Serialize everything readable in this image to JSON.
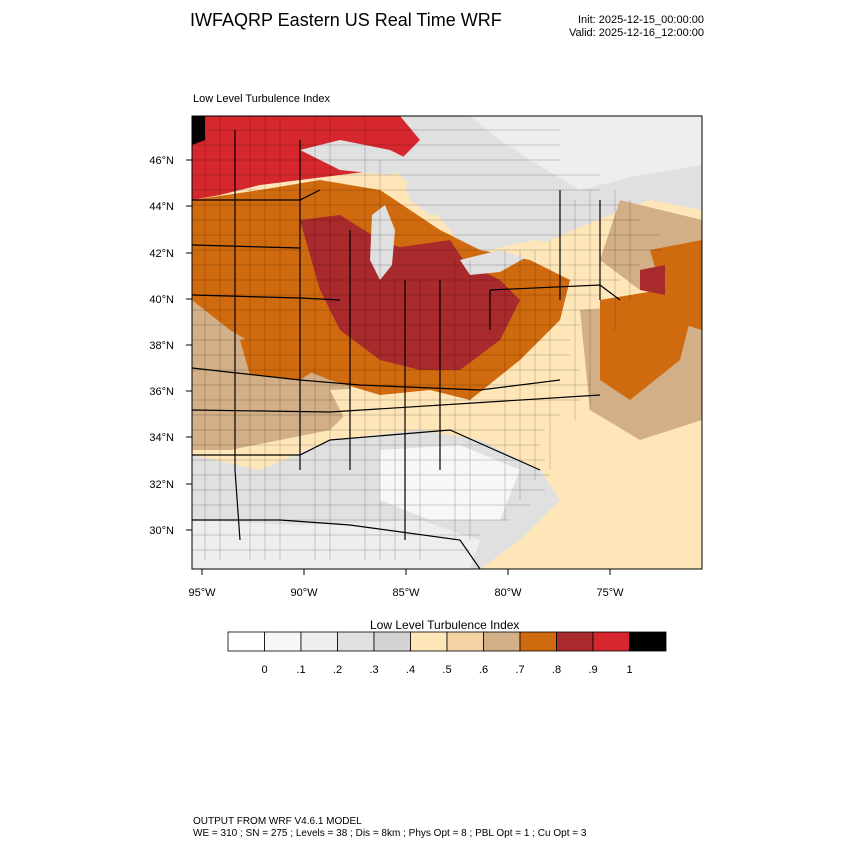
{
  "header": {
    "title": "IWFAQRP Eastern US Real Time WRF",
    "init": "Init: 2025-12-15_00:00:00",
    "valid": "Valid: 2025-12-16_12:00:00"
  },
  "plot": {
    "label": "Low Level Turbulence Index",
    "lat_labels": [
      "46°N",
      "44°N",
      "42°N",
      "40°N",
      "38°N",
      "36°N",
      "34°N",
      "32°N",
      "30°N"
    ],
    "lon_labels": [
      "95°W",
      "90°W",
      "85°W",
      "80°W",
      "75°W"
    ]
  },
  "colorbar": {
    "title": "Low Level Turbulence Index",
    "tick_labels": [
      "0",
      ".1",
      ".2",
      ".3",
      ".4",
      ".5",
      ".6",
      ".7",
      ".8",
      ".9",
      "1"
    ],
    "colors": [
      "#ffffff",
      "#f7f7f7",
      "#eeeeee",
      "#e0e0e0",
      "#d3d3d3",
      "#ffe6b8",
      "#f5d2a3",
      "#d2af86",
      "#d06a0e",
      "#a92a2c",
      "#d5272d",
      "#000000"
    ]
  },
  "footer": {
    "line1": "OUTPUT FROM WRF V4.6.1 MODEL",
    "line2": "WE = 310 ; SN = 275 ; Levels = 38 ; Dis = 8km ; Phys Opt = 8 ; PBL Opt = 1 ; Cu Opt = 3"
  }
}
